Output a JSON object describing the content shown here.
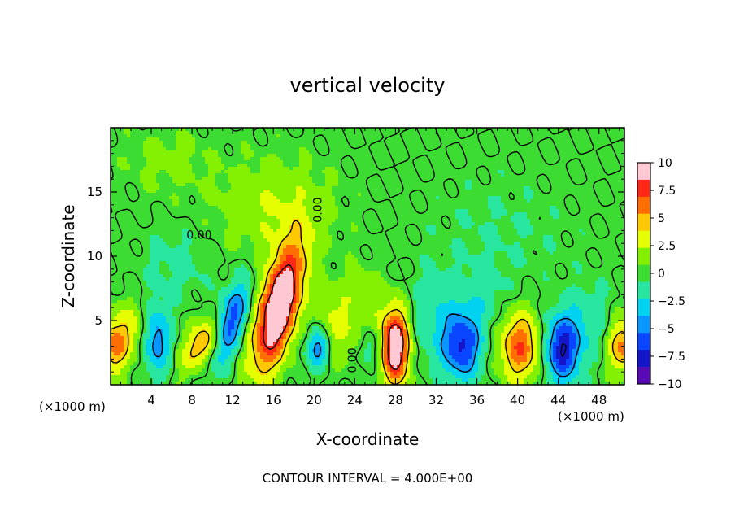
{
  "chart_data": {
    "type": "heatmap",
    "title": "vertical velocity",
    "xlabel": "X-coordinate",
    "ylabel": "Z-coordinate",
    "x_unit_left": "(×1000 m)",
    "x_unit_right": "(×1000 m)",
    "xlim": [
      0,
      50.5
    ],
    "ylim": [
      0,
      20
    ],
    "x_ticks": [
      4,
      8,
      12,
      16,
      20,
      24,
      28,
      32,
      36,
      40,
      44,
      48
    ],
    "x_tick_labels": [
      "4",
      "8",
      "12",
      "16",
      "20",
      "24",
      "28",
      "32",
      "36",
      "40",
      "44",
      "48"
    ],
    "y_ticks": [
      5,
      10,
      15
    ],
    "y_tick_labels": [
      "5",
      "10",
      "15"
    ],
    "contour_labels": [
      {
        "text": "0.00",
        "x": 8.7,
        "z": 11.6,
        "rotate": 0
      },
      {
        "text": "0.00",
        "x": 20.4,
        "z": 13.6,
        "rotate": -90
      },
      {
        "text": "0.00",
        "x": 23.8,
        "z": 1.9,
        "rotate": -90
      }
    ],
    "colorbar": {
      "min": -10,
      "max": 10,
      "tick_values": [
        10,
        7.5,
        5,
        2.5,
        0,
        -2.5,
        -5,
        -7.5,
        -10
      ],
      "tick_labels": [
        "10",
        "7.5",
        "5",
        "2.5",
        "0",
        "−2.5",
        "−5",
        "−7.5",
        "−10"
      ],
      "colors": [
        "#ffc8d2",
        "#ff2814",
        "#ff6e00",
        "#ffc800",
        "#e6ff00",
        "#82f000",
        "#3cdc32",
        "#28e6a0",
        "#00d2f0",
        "#0a96ff",
        "#0a46ff",
        "#1414c8",
        "#5a0ab4"
      ]
    },
    "features": [
      {
        "x": 16.5,
        "z": 6.0,
        "sx": 1.4,
        "sz": 3.4,
        "w": 12,
        "tilt": 0.3
      },
      {
        "x": 28.0,
        "z": 3.0,
        "sx": 1.0,
        "sz": 2.1,
        "w": 11
      },
      {
        "x": 9.3,
        "z": 3.3,
        "sx": 1.3,
        "sz": 1.5,
        "w": 6.5,
        "tilt": 0.5
      },
      {
        "x": 40.2,
        "z": 3.0,
        "sx": 1.4,
        "sz": 1.9,
        "w": 7
      },
      {
        "x": 0.3,
        "z": 3.0,
        "sx": 1.0,
        "sz": 1.5,
        "w": 6
      },
      {
        "x": 50.3,
        "z": 3.0,
        "sx": 1.0,
        "sz": 1.5,
        "w": 6
      },
      {
        "x": 21.8,
        "z": 4.5,
        "sx": 1.2,
        "sz": 2.0,
        "w": 2.5
      },
      {
        "x": 24.6,
        "z": 5.5,
        "sx": 1.6,
        "sz": 2.5,
        "w": 2.0
      },
      {
        "x": 16.0,
        "z": 13.8,
        "sx": 4.0,
        "sz": 2.6,
        "w": 2.3
      },
      {
        "x": 11.6,
        "z": 4.6,
        "sx": 1.1,
        "sz": 2.2,
        "w": -7.5,
        "tilt": 0.4
      },
      {
        "x": 4.6,
        "z": 3.4,
        "sx": 0.9,
        "sz": 1.8,
        "w": -5
      },
      {
        "x": 20.4,
        "z": 2.9,
        "sx": 0.8,
        "sz": 1.1,
        "w": -5.5
      },
      {
        "x": 34.5,
        "z": 3.0,
        "sx": 1.3,
        "sz": 1.8,
        "w": -7
      },
      {
        "x": 44.4,
        "z": 2.8,
        "sx": 1.2,
        "sz": 1.8,
        "w": -8
      },
      {
        "x": 25.5,
        "z": 3.0,
        "sx": 0.8,
        "sz": 1.2,
        "w": -3
      },
      {
        "x": 31.5,
        "z": 5.0,
        "sx": 1.8,
        "sz": 2.5,
        "w": -2
      },
      {
        "x": 6.5,
        "z": 9.5,
        "sx": 2.5,
        "sz": 2.0,
        "w": -1.3
      },
      {
        "x": 36.5,
        "z": 6.5,
        "sx": 2.0,
        "sz": 2.0,
        "w": -1.5
      },
      {
        "x": 47.0,
        "z": 5.0,
        "sx": 1.5,
        "sz": 2.0,
        "w": -2
      },
      {
        "x": 2.0,
        "z": 4.5,
        "sx": 1.0,
        "sz": 1.5,
        "w": 2.5
      },
      {
        "x": 38.5,
        "z": 12.0,
        "sx": 5.0,
        "sz": 3.0,
        "w": -0.8
      },
      {
        "x": 5.5,
        "z": 17.5,
        "sx": 3.0,
        "sz": 2.0,
        "w": 1.2
      }
    ],
    "footer": "CONTOUR INTERVAL = 4.000E+00"
  }
}
